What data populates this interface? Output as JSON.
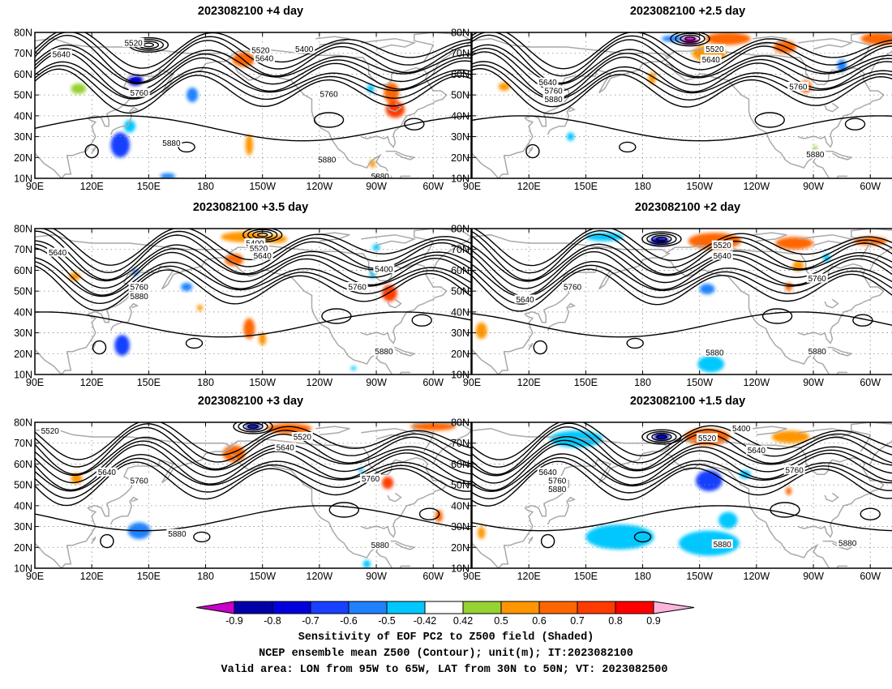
{
  "panels": [
    {
      "title": "2023082100  +4 day"
    },
    {
      "title": "2023082100  +2.5 day"
    },
    {
      "title": "2023082100  +3.5 day"
    },
    {
      "title": "2023082100  +2 day"
    },
    {
      "title": "2023082100  +3 day"
    },
    {
      "title": "2023082100  +1.5 day"
    }
  ],
  "map": {
    "lat_ticks": [
      "80N",
      "70N",
      "60N",
      "50N",
      "40N",
      "30N",
      "20N",
      "10N"
    ],
    "lon_ticks": [
      "90E",
      "120E",
      "150E",
      "180",
      "150W",
      "120W",
      "90W",
      "60W"
    ],
    "lon_range_deg": [
      90,
      320
    ],
    "lat_range_deg": [
      10,
      80
    ],
    "coastline_color": "#a9a9a9",
    "grid": "dotted"
  },
  "contours": {
    "labels": [
      "5400",
      "5520",
      "5640",
      "5760",
      "5880"
    ],
    "panel_labels": [
      [
        {
          "t": "5520",
          "lon": 142,
          "lat": 75
        },
        {
          "t": "5640",
          "lon": 104,
          "lat": 69.5
        },
        {
          "t": "5520",
          "lon": 209,
          "lat": 71.5
        },
        {
          "t": "5640",
          "lon": 211,
          "lat": 67.5
        },
        {
          "t": "5400",
          "lon": 232,
          "lat": 72
        },
        {
          "t": "5760",
          "lon": 145,
          "lat": 51
        },
        {
          "t": "5760",
          "lon": 245,
          "lat": 50.5
        },
        {
          "t": "5880",
          "lon": 162,
          "lat": 27
        },
        {
          "t": "5880",
          "lon": 244,
          "lat": 19
        },
        {
          "t": "5880",
          "lon": 272,
          "lat": 11
        }
      ],
      [
        {
          "t": "5520",
          "lon": 218,
          "lat": 72
        },
        {
          "t": "5640",
          "lon": 216,
          "lat": 67
        },
        {
          "t": "5640",
          "lon": 130,
          "lat": 56
        },
        {
          "t": "5760",
          "lon": 133,
          "lat": 52
        },
        {
          "t": "5880",
          "lon": 133,
          "lat": 48
        },
        {
          "t": "5760",
          "lon": 262,
          "lat": 54
        },
        {
          "t": "5880",
          "lon": 271,
          "lat": 21.5
        }
      ],
      [
        {
          "t": "5400",
          "lon": 206,
          "lat": 73
        },
        {
          "t": "5640",
          "lon": 102,
          "lat": 68.5
        },
        {
          "t": "5520",
          "lon": 208,
          "lat": 70.5
        },
        {
          "t": "5640",
          "lon": 210,
          "lat": 67
        },
        {
          "t": "5400",
          "lon": 274,
          "lat": 60.5
        },
        {
          "t": "5760",
          "lon": 145,
          "lat": 52
        },
        {
          "t": "5880",
          "lon": 145,
          "lat": 47.5
        },
        {
          "t": "5760",
          "lon": 260,
          "lat": 52
        },
        {
          "t": "5880",
          "lon": 274,
          "lat": 21
        }
      ],
      [
        {
          "t": "5520",
          "lon": 222,
          "lat": 72
        },
        {
          "t": "5640",
          "lon": 222,
          "lat": 67
        },
        {
          "t": "5640",
          "lon": 118,
          "lat": 46
        },
        {
          "t": "5760",
          "lon": 143,
          "lat": 52
        },
        {
          "t": "5760",
          "lon": 272,
          "lat": 56
        },
        {
          "t": "5880",
          "lon": 218,
          "lat": 20.5
        },
        {
          "t": "5880",
          "lon": 272,
          "lat": 21
        }
      ],
      [
        {
          "t": "5520",
          "lon": 98,
          "lat": 76
        },
        {
          "t": "5520",
          "lon": 231,
          "lat": 73
        },
        {
          "t": "5640",
          "lon": 222,
          "lat": 68
        },
        {
          "t": "5640",
          "lon": 128,
          "lat": 56
        },
        {
          "t": "5760",
          "lon": 145,
          "lat": 52
        },
        {
          "t": "5760",
          "lon": 267,
          "lat": 53
        },
        {
          "t": "5880",
          "lon": 165,
          "lat": 26.5
        },
        {
          "t": "5880",
          "lon": 272,
          "lat": 21
        }
      ],
      [
        {
          "t": "5400",
          "lon": 232,
          "lat": 77
        },
        {
          "t": "5520",
          "lon": 214,
          "lat": 72.5
        },
        {
          "t": "5640",
          "lon": 240,
          "lat": 66.5
        },
        {
          "t": "5640",
          "lon": 130,
          "lat": 56
        },
        {
          "t": "5760",
          "lon": 135,
          "lat": 52
        },
        {
          "t": "5880",
          "lon": 135,
          "lat": 48
        },
        {
          "t": "5760",
          "lon": 260,
          "lat": 57
        },
        {
          "t": "5880",
          "lon": 222,
          "lat": 21.5
        },
        {
          "t": "5880",
          "lon": 288,
          "lat": 22
        }
      ]
    ]
  },
  "colorbar": {
    "labels": [
      "-0.9",
      "-0.8",
      "-0.7",
      "-0.6",
      "-0.5",
      "-0.42",
      "0.42",
      "0.5",
      "0.6",
      "0.7",
      "0.8",
      "0.9"
    ],
    "colors": [
      "#0000aa",
      "#0000dd",
      "#1940ff",
      "#1e82ff",
      "#00c8ff",
      "#ffffff",
      "#96d232",
      "#ff9600",
      "#ff6600",
      "#ff3c00",
      "#ff0000"
    ],
    "left_arrow_color": "#c800c8",
    "right_arrow_color": "#ffb4dc"
  },
  "caption": {
    "line1": "Sensitivity of EOF PC2 to Z500 field (Shaded)",
    "line2": "NCEP ensemble mean Z500 (Contour); unit(m); IT:2023082100",
    "line3": "Valid area: LON from 95W to 65W, LAT from 30N to 50N; VT: 2023082500"
  },
  "shading_blobs": [
    [
      {
        "lon": 113,
        "lat": 53,
        "v": 0.48,
        "rx": 4,
        "ry": 2.5
      },
      {
        "lon": 143,
        "lat": 57,
        "v": -0.8,
        "rx": 4,
        "ry": 2.5
      },
      {
        "lon": 135,
        "lat": 26,
        "v": -0.62,
        "rx": 5,
        "ry": 6
      },
      {
        "lon": 140,
        "lat": 35,
        "v": -0.5,
        "rx": 3,
        "ry": 3
      },
      {
        "lon": 173,
        "lat": 50,
        "v": -0.55,
        "rx": 3,
        "ry": 3.5
      },
      {
        "lon": 200,
        "lat": 67,
        "v": 0.6,
        "rx": 6,
        "ry": 3.5
      },
      {
        "lon": 203,
        "lat": 26,
        "v": 0.55,
        "rx": 2,
        "ry": 5
      },
      {
        "lon": 278,
        "lat": 51,
        "v": 0.6,
        "rx": 4,
        "ry": 5
      },
      {
        "lon": 280,
        "lat": 43,
        "v": 0.75,
        "rx": 5,
        "ry": 4
      },
      {
        "lon": 267,
        "lat": 53,
        "v": -0.5,
        "rx": 2,
        "ry": 2
      },
      {
        "lon": 160,
        "lat": 11,
        "v": -0.6,
        "rx": 4,
        "ry": 1.5
      },
      {
        "lon": 268,
        "lat": 17,
        "v": 0.5,
        "rx": 1.5,
        "ry": 2
      }
    ],
    [
      {
        "lon": 196,
        "lat": 77,
        "v": -0.55,
        "rx": 6,
        "ry": 1.5
      },
      {
        "lon": 205,
        "lat": 76,
        "v": -0.9,
        "rx": 4,
        "ry": 2
      },
      {
        "lon": 225,
        "lat": 77,
        "v": 0.65,
        "rx": 12,
        "ry": 3
      },
      {
        "lon": 215,
        "lat": 70,
        "v": 0.55,
        "rx": 9,
        "ry": 4
      },
      {
        "lon": 255,
        "lat": 73,
        "v": 0.6,
        "rx": 6,
        "ry": 3
      },
      {
        "lon": 305,
        "lat": 77,
        "v": 0.6,
        "rx": 10,
        "ry": 3
      },
      {
        "lon": 285,
        "lat": 64,
        "v": -0.55,
        "rx": 2.5,
        "ry": 3
      },
      {
        "lon": 266,
        "lat": 54,
        "v": 0.62,
        "rx": 3,
        "ry": 3
      },
      {
        "lon": 107,
        "lat": 54,
        "v": 0.55,
        "rx": 3,
        "ry": 2
      },
      {
        "lon": 142,
        "lat": 30,
        "v": -0.5,
        "rx": 2,
        "ry": 2
      },
      {
        "lon": 271,
        "lat": 24,
        "v": 0.45,
        "rx": 1,
        "ry": 2
      },
      {
        "lon": 185,
        "lat": 58,
        "v": 0.55,
        "rx": 2,
        "ry": 3
      }
    ],
    [
      {
        "lon": 200,
        "lat": 76,
        "v": 0.58,
        "rx": 12,
        "ry": 2.5
      },
      {
        "lon": 217,
        "lat": 75,
        "v": 0.55,
        "rx": 6,
        "ry": 2
      },
      {
        "lon": 195,
        "lat": 65,
        "v": 0.6,
        "rx": 5,
        "ry": 3
      },
      {
        "lon": 111,
        "lat": 57,
        "v": 0.5,
        "rx": 3,
        "ry": 2
      },
      {
        "lon": 143,
        "lat": 59,
        "v": -0.55,
        "rx": 2,
        "ry": 1.5
      },
      {
        "lon": 170,
        "lat": 52,
        "v": -0.55,
        "rx": 3,
        "ry": 2
      },
      {
        "lon": 136,
        "lat": 24,
        "v": -0.62,
        "rx": 4,
        "ry": 5
      },
      {
        "lon": 270,
        "lat": 71,
        "v": -0.5,
        "rx": 2,
        "ry": 1.5
      },
      {
        "lon": 277,
        "lat": 49,
        "v": 0.72,
        "rx": 4,
        "ry": 4
      },
      {
        "lon": 268,
        "lat": 58,
        "v": -0.5,
        "rx": 1.5,
        "ry": 2
      },
      {
        "lon": 203,
        "lat": 32,
        "v": 0.6,
        "rx": 3,
        "ry": 5
      },
      {
        "lon": 210,
        "lat": 27,
        "v": 0.55,
        "rx": 2,
        "ry": 3
      },
      {
        "lon": 177,
        "lat": 42,
        "v": 0.5,
        "rx": 1.5,
        "ry": 1.5
      },
      {
        "lon": 258,
        "lat": 13,
        "v": -0.5,
        "rx": 1.5,
        "ry": 1
      }
    ],
    [
      {
        "lon": 160,
        "lat": 76,
        "v": -0.5,
        "rx": 10,
        "ry": 2
      },
      {
        "lon": 189,
        "lat": 74,
        "v": -0.8,
        "rx": 5,
        "ry": 2
      },
      {
        "lon": 218,
        "lat": 74,
        "v": 0.65,
        "rx": 14,
        "ry": 4
      },
      {
        "lon": 260,
        "lat": 73,
        "v": 0.62,
        "rx": 10,
        "ry": 3
      },
      {
        "lon": 300,
        "lat": 74,
        "v": 0.6,
        "rx": 9,
        "ry": 2
      },
      {
        "lon": 262,
        "lat": 62,
        "v": 0.55,
        "rx": 3,
        "ry": 2.5
      },
      {
        "lon": 257,
        "lat": 52,
        "v": 0.6,
        "rx": 2,
        "ry": 2
      },
      {
        "lon": 277,
        "lat": 66,
        "v": -0.5,
        "rx": 2,
        "ry": 2
      },
      {
        "lon": 214,
        "lat": 51,
        "v": -0.6,
        "rx": 4,
        "ry": 2.5
      },
      {
        "lon": 95,
        "lat": 31,
        "v": 0.5,
        "rx": 3,
        "ry": 4
      },
      {
        "lon": 216,
        "lat": 15,
        "v": -0.45,
        "rx": 7,
        "ry": 4
      }
    ],
    [
      {
        "lon": 205,
        "lat": 78,
        "v": -0.8,
        "rx": 4,
        "ry": 1.5
      },
      {
        "lon": 224,
        "lat": 77,
        "v": 0.6,
        "rx": 12,
        "ry": 2.5
      },
      {
        "lon": 300,
        "lat": 78,
        "v": 0.6,
        "rx": 12,
        "ry": 2
      },
      {
        "lon": 195,
        "lat": 65,
        "v": 0.6,
        "rx": 6,
        "ry": 4
      },
      {
        "lon": 112,
        "lat": 53,
        "v": 0.5,
        "rx": 3,
        "ry": 2.5
      },
      {
        "lon": 145,
        "lat": 28,
        "v": -0.6,
        "rx": 6,
        "ry": 4
      },
      {
        "lon": 276,
        "lat": 51,
        "v": 0.7,
        "rx": 3,
        "ry": 3
      },
      {
        "lon": 262,
        "lat": 57,
        "v": -0.5,
        "rx": 1.5,
        "ry": 1
      },
      {
        "lon": 303,
        "lat": 35,
        "v": 0.6,
        "rx": 2,
        "ry": 3
      },
      {
        "lon": 265,
        "lat": 12,
        "v": -0.5,
        "rx": 2,
        "ry": 2
      }
    ],
    [
      {
        "lon": 145,
        "lat": 72,
        "v": -0.5,
        "rx": 14,
        "ry": 4
      },
      {
        "lon": 190,
        "lat": 73,
        "v": -0.8,
        "rx": 4,
        "ry": 2
      },
      {
        "lon": 214,
        "lat": 73,
        "v": 0.65,
        "rx": 12,
        "ry": 4
      },
      {
        "lon": 258,
        "lat": 73,
        "v": 0.55,
        "rx": 10,
        "ry": 3
      },
      {
        "lon": 215,
        "lat": 52,
        "v": -0.65,
        "rx": 7,
        "ry": 5
      },
      {
        "lon": 234,
        "lat": 55,
        "v": -0.5,
        "rx": 3,
        "ry": 2
      },
      {
        "lon": 257,
        "lat": 47,
        "v": 0.6,
        "rx": 1.5,
        "ry": 2
      },
      {
        "lon": 168,
        "lat": 25,
        "v": -0.5,
        "rx": 18,
        "ry": 6
      },
      {
        "lon": 215,
        "lat": 22,
        "v": -0.5,
        "rx": 16,
        "ry": 6
      },
      {
        "lon": 225,
        "lat": 33,
        "v": -0.5,
        "rx": 5,
        "ry": 4
      },
      {
        "lon": 95,
        "lat": 27,
        "v": 0.55,
        "rx": 2,
        "ry": 3
      }
    ]
  ]
}
